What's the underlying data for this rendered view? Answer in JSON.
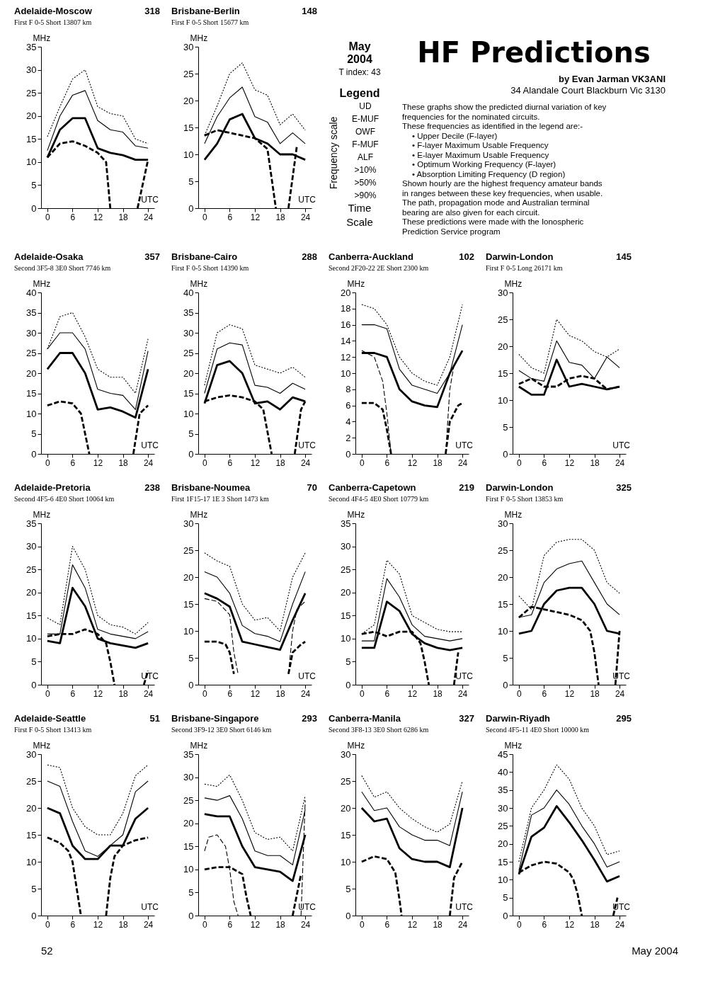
{
  "chart_data": [
    {
      "type": "line",
      "title": "Adelaide-Moscow",
      "subtitle": "First F 0-5   Short   13807 km",
      "ylabel": "MHz",
      "annotations": [
        "318",
        "UTC"
      ],
      "x": [
        0,
        3,
        6,
        9,
        12,
        15,
        18,
        21,
        24
      ],
      "xlim": [
        -1.5,
        25.5
      ],
      "xticks": [
        0,
        6,
        12,
        18,
        24
      ],
      "ylim": [
        0,
        35
      ],
      "yticks": [
        0,
        5,
        10,
        15,
        20,
        25,
        30,
        35
      ],
      "series": [
        {
          "color": "#000000",
          "line_style": "dotted",
          "values": [
            15.5,
            22,
            28,
            30,
            22,
            20.5,
            20,
            15,
            14
          ]
        },
        {
          "color": "#000000",
          "line_style": "solid",
          "values": [
            12.5,
            20,
            24.5,
            25.5,
            19,
            17,
            16.5,
            13.5,
            13
          ]
        },
        {
          "color": "#000000",
          "line_style": "solid",
          "values": [
            11,
            17,
            19.5,
            19.5,
            13,
            12,
            11.5,
            10.5,
            10.5
          ]
        },
        {
          "color": "#000000",
          "line_style": "dashed",
          "x": [
            0,
            3,
            6,
            9,
            12,
            14,
            15,
            17,
            21.5,
            24
          ],
          "values": [
            11,
            14,
            14.5,
            13.5,
            12,
            10,
            0,
            null,
            0,
            10.5
          ]
        }
      ]
    },
    {
      "type": "line",
      "title": "Brisbane-Berlin",
      "subtitle": "First F 0-5   Short   15677 km",
      "ylabel": "MHz",
      "annotations": [
        "148",
        "UTC"
      ],
      "x": [
        0,
        3,
        6,
        9,
        12,
        15,
        18,
        21,
        24
      ],
      "xlim": [
        -1.5,
        25.5
      ],
      "xticks": [
        0,
        6,
        12,
        18,
        24
      ],
      "ylim": [
        0,
        30
      ],
      "yticks": [
        0,
        5,
        10,
        15,
        20,
        25,
        30
      ],
      "series": [
        {
          "color": "#000000",
          "line_style": "dotted",
          "values": [
            13.5,
            19,
            25,
            27,
            22,
            21,
            15.5,
            17.5,
            14.5
          ]
        },
        {
          "color": "#000000",
          "line_style": "solid",
          "values": [
            12,
            17,
            20.5,
            22.5,
            17,
            16,
            12,
            14,
            12
          ]
        },
        {
          "color": "#000000",
          "line_style": "solid",
          "values": [
            9,
            12,
            16.5,
            17.5,
            13,
            12,
            10,
            10,
            9
          ]
        },
        {
          "color": "#000000",
          "line_style": "dashed",
          "x": [
            0,
            3,
            6,
            9,
            12,
            15,
            17,
            19,
            20,
            22
          ],
          "values": [
            13.5,
            14.5,
            14,
            13.5,
            13,
            11,
            0,
            null,
            0,
            11.5
          ]
        }
      ]
    },
    {
      "type": "other",
      "title": "May 2004",
      "annotations": [
        "T index: 43",
        "Legend",
        "UD",
        "E-MUF",
        "OWF",
        "F-MUF",
        "ALF",
        ">10%",
        ">50%",
        ">90%",
        "Frequency scale",
        "Time",
        "Scale"
      ]
    },
    {
      "type": "other",
      "title": "HF Predictions",
      "subtitle": "by Evan Jarman VK3ANI",
      "annotations": [
        "34 Alandale Court Blackburn Vic 3130",
        "These graphs show the predicted diurnal variation of key",
        "frequencies for the nominated circuits.",
        "These frequencies as identified in the legend are:-",
        "• Upper Decile (F-layer)",
        "• F-layer Maximum Usable Frequency",
        "• E-layer Maximum Usable Frequency",
        "• Optimum Working Frequency (F-layer)",
        "• Absorption Limiting Frequency (D region)",
        "Shown hourly are the highest frequency amateur bands",
        "in ranges between these key frequencies, when usable.",
        "The path, propagation mode and Australian terminal",
        "bearing are also given for each circuit.",
        "These predictions were made with the Ionospheric",
        "Prediction Service program"
      ]
    },
    {
      "type": "line",
      "title": "Adelaide-Osaka",
      "subtitle": "Second 3F5-8 3E0   Short   7746 km",
      "ylabel": "MHz",
      "annotations": [
        "357",
        "UTC"
      ],
      "x": [
        0,
        3,
        6,
        9,
        12,
        15,
        18,
        21,
        24
      ],
      "xlim": [
        -1.5,
        25.5
      ],
      "xticks": [
        0,
        6,
        12,
        18,
        24
      ],
      "ylim": [
        0,
        40
      ],
      "yticks": [
        0,
        5,
        10,
        15,
        20,
        25,
        30,
        35,
        40
      ],
      "series": [
        {
          "color": "#000000",
          "line_style": "dotted",
          "values": [
            26,
            34,
            35,
            29,
            21,
            19,
            19,
            15,
            28.5
          ]
        },
        {
          "color": "#000000",
          "line_style": "solid",
          "values": [
            26,
            30,
            30,
            26,
            16,
            15,
            14.5,
            11,
            25.5
          ]
        },
        {
          "color": "#000000",
          "line_style": "solid",
          "values": [
            21,
            25,
            25,
            20,
            11,
            11.5,
            10.5,
            9,
            21
          ]
        },
        {
          "color": "#000000",
          "line_style": "dashed",
          "x": [
            0,
            3,
            6,
            8,
            10,
            15,
            20.5,
            22,
            24
          ],
          "values": [
            12,
            13,
            12.5,
            10,
            0,
            null,
            0,
            10,
            12
          ]
        }
      ]
    },
    {
      "type": "line",
      "title": "Brisbane-Cairo",
      "subtitle": "First F 0-5   Short   14390 km",
      "ylabel": "MHz",
      "annotations": [
        "288",
        "UTC"
      ],
      "x": [
        0,
        3,
        6,
        9,
        12,
        15,
        18,
        21,
        24
      ],
      "xlim": [
        -1.5,
        25.5
      ],
      "xticks": [
        0,
        6,
        12,
        18,
        24
      ],
      "ylim": [
        0,
        40
      ],
      "yticks": [
        0,
        5,
        10,
        15,
        20,
        25,
        30,
        35,
        40
      ],
      "series": [
        {
          "color": "#000000",
          "line_style": "dotted",
          "values": [
            17,
            30,
            32,
            31,
            22,
            21,
            20,
            21.5,
            19
          ]
        },
        {
          "color": "#000000",
          "line_style": "solid",
          "values": [
            15,
            26,
            27.5,
            27,
            17,
            16.5,
            15,
            17.5,
            16
          ]
        },
        {
          "color": "#000000",
          "line_style": "solid",
          "values": [
            12.5,
            22,
            23,
            20,
            12.5,
            13,
            11,
            14,
            13
          ]
        },
        {
          "color": "#000000",
          "line_style": "dashed",
          "x": [
            0,
            3,
            6,
            9,
            12,
            14,
            16,
            18,
            21.5,
            23,
            24
          ],
          "values": [
            13,
            14,
            14.5,
            14,
            13,
            11,
            0,
            null,
            0,
            11,
            13
          ]
        }
      ]
    },
    {
      "type": "line",
      "title": "Canberra-Auckland",
      "subtitle": "Second 2F20-22 2E   Short   2300 km",
      "ylabel": "MHz",
      "annotations": [
        "102",
        "UTC"
      ],
      "x": [
        0,
        3,
        6,
        9,
        12,
        15,
        18,
        21,
        24
      ],
      "xlim": [
        -1.5,
        25.5
      ],
      "xticks": [
        0,
        6,
        12,
        18,
        24
      ],
      "ylim": [
        0,
        20
      ],
      "yticks": [
        0,
        2,
        4,
        6,
        8,
        10,
        12,
        14,
        16,
        18,
        20
      ],
      "series": [
        {
          "color": "#000000",
          "line_style": "dotted",
          "values": [
            18.5,
            18,
            16,
            12,
            10,
            9,
            8.5,
            12,
            18.5
          ]
        },
        {
          "color": "#000000",
          "line_style": "dashed",
          "x": [
            0,
            3,
            5,
            6,
            7,
            13,
            20,
            21,
            22,
            24
          ],
          "values": [
            12.8,
            12,
            9,
            5,
            0,
            null,
            0,
            8,
            11,
            12.8
          ]
        },
        {
          "color": "#000000",
          "line_style": "solid",
          "values": [
            16,
            16,
            15.5,
            10.5,
            8.5,
            8,
            7.5,
            10,
            16
          ]
        },
        {
          "color": "#000000",
          "line_style": "solid",
          "values": [
            12.5,
            12.5,
            12,
            8,
            6.5,
            6,
            5.8,
            10,
            12.8
          ]
        },
        {
          "color": "#000000",
          "line_style": "dashed",
          "x": [
            0,
            3,
            5,
            6,
            7,
            13,
            20,
            21,
            23,
            24
          ],
          "values": [
            6.3,
            6.3,
            5.5,
            3,
            0,
            null,
            0,
            4,
            6,
            6.3
          ]
        }
      ]
    },
    {
      "type": "line",
      "title": "Darwin-London",
      "subtitle": "First F 0-5   Long   26171 km",
      "ylabel": "MHz",
      "annotations": [
        "145",
        "UTC"
      ],
      "x": [
        0,
        3,
        6,
        9,
        12,
        15,
        18,
        21,
        24
      ],
      "xlim": [
        -1.5,
        25.5
      ],
      "xticks": [
        0,
        6,
        12,
        18,
        24
      ],
      "ylim": [
        0,
        30
      ],
      "yticks": [
        0,
        5,
        10,
        15,
        20,
        25,
        30
      ],
      "series": [
        {
          "color": "#000000",
          "line_style": "dotted",
          "values": [
            18.5,
            16,
            15,
            25,
            22,
            21,
            19,
            18,
            19.5
          ]
        },
        {
          "color": "#000000",
          "line_style": "solid",
          "values": [
            15.5,
            14,
            13.5,
            21,
            17,
            16.5,
            14,
            18,
            16
          ]
        },
        {
          "color": "#000000",
          "line_style": "solid",
          "values": [
            12.5,
            11,
            11,
            17.5,
            12.5,
            13,
            12.5,
            12,
            12.5
          ]
        },
        {
          "color": "#000000",
          "line_style": "dashed",
          "values": [
            13,
            14,
            12.5,
            12.5,
            14,
            14.5,
            14,
            12,
            12.5
          ]
        }
      ]
    },
    {
      "type": "line",
      "title": "Adelaide-Pretoria",
      "subtitle": "Second 4F5-6 4E0   Short   10064 km",
      "ylabel": "MHz",
      "annotations": [
        "238",
        "UTC"
      ],
      "x": [
        0,
        3,
        6,
        9,
        12,
        15,
        18,
        21,
        24
      ],
      "xlim": [
        -1.5,
        25.5
      ],
      "xticks": [
        0,
        6,
        12,
        18,
        24
      ],
      "ylim": [
        0,
        35
      ],
      "yticks": [
        0,
        5,
        10,
        15,
        20,
        25,
        30,
        35
      ],
      "series": [
        {
          "color": "#000000",
          "line_style": "dotted",
          "values": [
            14.5,
            13,
            30,
            25,
            15,
            13,
            12.5,
            11,
            13.5
          ]
        },
        {
          "color": "#000000",
          "line_style": "solid",
          "values": [
            11,
            11,
            26,
            21,
            12,
            11,
            10.5,
            10,
            11.5
          ]
        },
        {
          "color": "#000000",
          "line_style": "solid",
          "values": [
            9.5,
            9,
            21,
            17,
            10,
            9,
            8.5,
            8,
            9
          ]
        },
        {
          "color": "#000000",
          "line_style": "dashed",
          "x": [
            0,
            3,
            6,
            9,
            12,
            14,
            15,
            16,
            20,
            23,
            24
          ],
          "values": [
            10.5,
            11,
            11,
            12,
            11,
            9,
            5,
            0,
            null,
            0,
            3
          ]
        }
      ]
    },
    {
      "type": "line",
      "title": "Brisbane-Noumea",
      "subtitle": "First 1F15-17 1E 3   Short   1473 km",
      "ylabel": "MHz",
      "annotations": [
        "70",
        "UTC"
      ],
      "x": [
        0,
        3,
        6,
        9,
        12,
        15,
        18,
        21,
        24
      ],
      "xlim": [
        -1.5,
        25.5
      ],
      "xticks": [
        0,
        6,
        12,
        18,
        24
      ],
      "ylim": [
        0,
        30
      ],
      "yticks": [
        0,
        5,
        10,
        15,
        20,
        25,
        30
      ],
      "series": [
        {
          "color": "#000000",
          "line_style": "dotted",
          "values": [
            24.5,
            23,
            22,
            15,
            12,
            12.5,
            10,
            20,
            24.5
          ]
        },
        {
          "color": "#000000",
          "line_style": "dashed",
          "x": [
            0,
            3,
            6,
            7,
            8,
            13,
            20,
            21,
            22,
            24
          ],
          "values": [
            16,
            15.5,
            13,
            6,
            2,
            null,
            2,
            10,
            14,
            15.5
          ]
        },
        {
          "color": "#000000",
          "line_style": "solid",
          "values": [
            21,
            20,
            17,
            11,
            9.5,
            9,
            8,
            15,
            21
          ]
        },
        {
          "color": "#000000",
          "line_style": "solid",
          "values": [
            17,
            16,
            14.5,
            8,
            7.5,
            7,
            6.5,
            12,
            17
          ]
        },
        {
          "color": "#000000",
          "line_style": "dashed",
          "x": [
            0,
            3,
            5,
            6,
            7,
            13,
            20,
            21,
            23,
            24
          ],
          "values": [
            8,
            8,
            7.5,
            6,
            2,
            null,
            2,
            6,
            7.5,
            8
          ]
        }
      ]
    },
    {
      "type": "line",
      "title": "Canberra-Capetown",
      "subtitle": "Second 4F4-5 4E0   Short   10779 km",
      "ylabel": "MHz",
      "annotations": [
        "219",
        "UTC"
      ],
      "x": [
        0,
        3,
        6,
        9,
        12,
        15,
        18,
        21,
        24
      ],
      "xlim": [
        -1.5,
        25.5
      ],
      "xticks": [
        0,
        6,
        12,
        18,
        24
      ],
      "ylim": [
        0,
        35
      ],
      "yticks": [
        0,
        5,
        10,
        15,
        20,
        25,
        30,
        35
      ],
      "series": [
        {
          "color": "#000000",
          "line_style": "dotted",
          "values": [
            11,
            13,
            27,
            24,
            15,
            13.5,
            12,
            11.5,
            11.5
          ]
        },
        {
          "color": "#000000",
          "line_style": "solid",
          "values": [
            9.5,
            9.5,
            23,
            19,
            13,
            10.5,
            10,
            9.5,
            10
          ]
        },
        {
          "color": "#000000",
          "line_style": "solid",
          "values": [
            8,
            8,
            18,
            16,
            11,
            9,
            8,
            7.5,
            8
          ]
        },
        {
          "color": "#000000",
          "line_style": "dashed",
          "x": [
            0,
            3,
            6,
            9,
            12,
            14,
            15,
            16,
            19,
            22,
            23
          ],
          "values": [
            11,
            11.5,
            10.5,
            11.5,
            11.5,
            9,
            5,
            0,
            null,
            0,
            7
          ]
        }
      ]
    },
    {
      "type": "line",
      "title": "Darwin-London",
      "subtitle": "First F 0-5   Short   13853 km",
      "ylabel": "MHz",
      "annotations": [
        "325",
        "UTC"
      ],
      "x": [
        0,
        3,
        6,
        9,
        12,
        15,
        18,
        21,
        24
      ],
      "xlim": [
        -1.5,
        25.5
      ],
      "xticks": [
        0,
        6,
        12,
        18,
        24
      ],
      "ylim": [
        0,
        30
      ],
      "yticks": [
        0,
        5,
        10,
        15,
        20,
        25,
        30
      ],
      "series": [
        {
          "color": "#000000",
          "line_style": "dotted",
          "values": [
            16.5,
            14,
            24,
            26.5,
            27,
            27,
            25,
            19,
            17
          ]
        },
        {
          "color": "#000000",
          "line_style": "solid",
          "values": [
            12.5,
            13,
            19,
            21.5,
            22.5,
            23,
            19,
            15,
            13
          ]
        },
        {
          "color": "#000000",
          "line_style": "solid",
          "values": [
            9.5,
            10,
            15,
            17.5,
            18,
            18,
            15,
            10,
            9.5
          ]
        },
        {
          "color": "#000000",
          "line_style": "dashed",
          "x": [
            0,
            3,
            6,
            9,
            12,
            15,
            17,
            18,
            19,
            21,
            23,
            24
          ],
          "values": [
            12.5,
            14.5,
            14,
            13.5,
            13,
            12,
            10,
            6,
            0,
            null,
            0,
            10
          ]
        }
      ]
    },
    {
      "type": "line",
      "title": "Adelaide-Seattle",
      "subtitle": "First F 0-5   Short   13413 km",
      "ylabel": "MHz",
      "annotations": [
        "51",
        "UTC"
      ],
      "x": [
        0,
        3,
        6,
        9,
        12,
        15,
        18,
        21,
        24
      ],
      "xlim": [
        -1.5,
        25.5
      ],
      "xticks": [
        0,
        6,
        12,
        18,
        24
      ],
      "ylim": [
        0,
        30
      ],
      "yticks": [
        0,
        5,
        10,
        15,
        20,
        25,
        30
      ],
      "series": [
        {
          "color": "#000000",
          "line_style": "dotted",
          "values": [
            28,
            27.5,
            20,
            16.5,
            15,
            15,
            19,
            26,
            28
          ]
        },
        {
          "color": "#000000",
          "line_style": "solid",
          "values": [
            25,
            24,
            17.5,
            12,
            11,
            13,
            15,
            23,
            25
          ]
        },
        {
          "color": "#000000",
          "line_style": "solid",
          "values": [
            20,
            19,
            13,
            10.5,
            10.5,
            13,
            13,
            18,
            20
          ]
        },
        {
          "color": "#000000",
          "line_style": "dashed",
          "x": [
            0,
            3,
            5,
            6,
            7,
            8,
            11,
            14,
            15,
            16,
            18,
            21,
            24
          ],
          "values": [
            14.5,
            13.5,
            12,
            10,
            5,
            0,
            null,
            0,
            7,
            11,
            13,
            14,
            14.5
          ]
        }
      ]
    },
    {
      "type": "line",
      "title": "Brisbane-Singapore",
      "subtitle": "Second 3F9-12 3E0   Short   6146 km",
      "ylabel": "MHz",
      "annotations": [
        "293",
        "UTC"
      ],
      "x": [
        0,
        3,
        6,
        9,
        12,
        15,
        18,
        21,
        24
      ],
      "xlim": [
        -1.5,
        25.5
      ],
      "xticks": [
        0,
        6,
        12,
        18,
        24
      ],
      "ylim": [
        0,
        35
      ],
      "yticks": [
        0,
        5,
        10,
        15,
        20,
        25,
        30,
        35
      ],
      "series": [
        {
          "color": "#000000",
          "line_style": "dotted",
          "values": [
            28.5,
            28,
            30.5,
            25,
            18,
            16.5,
            17,
            14,
            26
          ]
        },
        {
          "color": "#000000",
          "line_style": "dashed",
          "x": [
            0,
            1,
            3,
            5,
            6,
            7,
            8,
            15,
            23,
            24
          ],
          "values": [
            14,
            17,
            17.5,
            15,
            10,
            3,
            0,
            null,
            0,
            25
          ]
        },
        {
          "color": "#000000",
          "line_style": "solid",
          "values": [
            25.5,
            25,
            26,
            21,
            14,
            13,
            13,
            11,
            23
          ]
        },
        {
          "color": "#000000",
          "line_style": "solid",
          "values": [
            22,
            21.5,
            21.5,
            15,
            10.5,
            10,
            9.5,
            7.5,
            17.5
          ]
        },
        {
          "color": "#000000",
          "line_style": "dashed",
          "x": [
            0,
            3,
            6,
            9,
            10,
            11,
            16,
            21,
            23
          ],
          "values": [
            10,
            10.5,
            10.5,
            9,
            4,
            0,
            null,
            0,
            9
          ]
        }
      ]
    },
    {
      "type": "line",
      "title": "Canberra-Manila",
      "subtitle": "Second 3F8-13 3E0   Short   6286 km",
      "ylabel": "MHz",
      "annotations": [
        "327",
        "UTC"
      ],
      "x": [
        0,
        3,
        6,
        9,
        12,
        15,
        18,
        21,
        24
      ],
      "xlim": [
        -1.5,
        25.5
      ],
      "xticks": [
        0,
        6,
        12,
        18,
        24
      ],
      "ylim": [
        0,
        30
      ],
      "yticks": [
        0,
        5,
        10,
        15,
        20,
        25,
        30
      ],
      "series": [
        {
          "color": "#000000",
          "line_style": "dotted",
          "values": [
            26,
            22,
            23,
            20,
            18,
            16.5,
            15.5,
            17,
            25
          ]
        },
        {
          "color": "#000000",
          "line_style": "solid",
          "values": [
            23,
            19.5,
            20,
            16.5,
            15,
            14,
            14,
            13,
            23
          ]
        },
        {
          "color": "#000000",
          "line_style": "solid",
          "values": [
            20,
            17.5,
            18,
            12.5,
            10.5,
            10,
            10,
            9,
            20
          ]
        },
        {
          "color": "#000000",
          "line_style": "dashed",
          "x": [
            0,
            3,
            6,
            8,
            9,
            9.5,
            15,
            21,
            22,
            24
          ],
          "values": [
            10,
            11,
            10.5,
            8,
            3,
            0,
            null,
            0,
            7,
            10
          ]
        }
      ]
    },
    {
      "type": "line",
      "title": "Darwin-Riyadh",
      "subtitle": "Second 4F5-11 4E0   Short   10000 km",
      "ylabel": "MHz",
      "annotations": [
        "295",
        "UTC"
      ],
      "x": [
        0,
        3,
        6,
        9,
        12,
        15,
        18,
        21,
        24
      ],
      "xlim": [
        -1.5,
        25.5
      ],
      "xticks": [
        0,
        6,
        12,
        18,
        24
      ],
      "ylim": [
        0,
        45
      ],
      "yticks": [
        0,
        5,
        10,
        15,
        20,
        25,
        30,
        35,
        40,
        45
      ],
      "series": [
        {
          "color": "#000000",
          "line_style": "dotted",
          "values": [
            15,
            30,
            35,
            42,
            38,
            30,
            25,
            17,
            18
          ]
        },
        {
          "color": "#000000",
          "line_style": "solid",
          "values": [
            12.5,
            28,
            30,
            35,
            31,
            25,
            20,
            13.5,
            15
          ]
        },
        {
          "color": "#000000",
          "line_style": "solid",
          "values": [
            11.5,
            22,
            24.5,
            30.5,
            26,
            21,
            15.5,
            9.5,
            11
          ]
        },
        {
          "color": "#000000",
          "line_style": "dashed",
          "x": [
            0,
            3,
            6,
            9,
            12,
            13,
            14,
            15,
            19,
            22.5,
            23.5
          ],
          "values": [
            12,
            14,
            15,
            14.5,
            12,
            10,
            6,
            0,
            null,
            0,
            5
          ]
        }
      ]
    },
    {
      "type": "other",
      "annotations": [
        "52",
        "May 2004"
      ]
    }
  ]
}
